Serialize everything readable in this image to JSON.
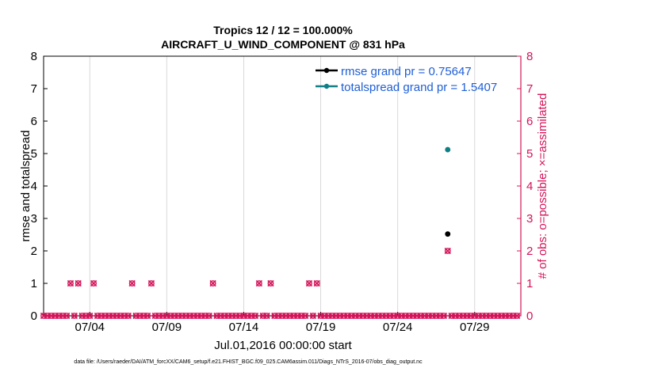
{
  "chart_data": {
    "type": "scatter",
    "title": "Tropics 12 / 12 = 100.000%",
    "subtitle": "AIRCRAFT_U_WIND_COMPONENT @ 831 hPa",
    "xlabel": "Jul.01,2016 00:00:00 start",
    "ylabel_left": "rmse and totalspread",
    "ylabel_right": "# of obs: o=possible; ×=assimilated",
    "xlim": [
      "2016-07-01",
      "2016-08-01"
    ],
    "ylim_left": [
      0,
      8
    ],
    "ylim_right": [
      0,
      8
    ],
    "x_tick_labels": [
      "07/04",
      "07/09",
      "07/14",
      "07/19",
      "07/24",
      "07/29"
    ],
    "y_tick_labels": [
      "0",
      "1",
      "2",
      "3",
      "4",
      "5",
      "6",
      "7",
      "8"
    ],
    "legend_position": "top-right",
    "grid": "vertical",
    "colors": {
      "rmse": "#000000",
      "totalspread": "#0f7f86",
      "obs": "#d4145a",
      "legend_text": "#1f5fd6"
    },
    "series": [
      {
        "name": "rmse grand pr = 0.75647",
        "marker": "dot",
        "color": "#000000",
        "points": [
          {
            "x": "2016-07-27 06:00",
            "y": 2.52
          }
        ]
      },
      {
        "name": "totalspread grand pr = 1.5407",
        "marker": "dot",
        "color": "#0f7f86",
        "points": [
          {
            "x": "2016-07-27 06:00",
            "y": 5.12
          }
        ]
      },
      {
        "name": "obs possible",
        "marker": "circle",
        "color": "#d4145a",
        "axis": "right",
        "points": [
          {
            "x": "2016-07-01 00:00",
            "y": 0
          },
          {
            "x": "2016-07-01 06:00",
            "y": 0
          },
          {
            "x": "2016-07-01 12:00",
            "y": 0
          },
          {
            "x": "2016-07-01 18:00",
            "y": 0
          },
          {
            "x": "2016-07-02 00:00",
            "y": 0
          },
          {
            "x": "2016-07-02 06:00",
            "y": 0
          },
          {
            "x": "2016-07-02 12:00",
            "y": 0
          },
          {
            "x": "2016-07-02 18:00",
            "y": 1
          },
          {
            "x": "2016-07-03 00:00",
            "y": 0
          },
          {
            "x": "2016-07-03 06:00",
            "y": 1
          },
          {
            "x": "2016-07-03 12:00",
            "y": 0
          },
          {
            "x": "2016-07-03 18:00",
            "y": 0
          },
          {
            "x": "2016-07-04 00:00",
            "y": 0
          },
          {
            "x": "2016-07-04 06:00",
            "y": 1
          },
          {
            "x": "2016-07-04 12:00",
            "y": 0
          },
          {
            "x": "2016-07-04 18:00",
            "y": 0
          },
          {
            "x": "2016-07-05 00:00",
            "y": 0
          },
          {
            "x": "2016-07-05 06:00",
            "y": 0
          },
          {
            "x": "2016-07-05 12:00",
            "y": 0
          },
          {
            "x": "2016-07-05 18:00",
            "y": 0
          },
          {
            "x": "2016-07-06 00:00",
            "y": 0
          },
          {
            "x": "2016-07-06 06:00",
            "y": 0
          },
          {
            "x": "2016-07-06 12:00",
            "y": 0
          },
          {
            "x": "2016-07-06 18:00",
            "y": 1
          },
          {
            "x": "2016-07-07 00:00",
            "y": 0
          },
          {
            "x": "2016-07-07 06:00",
            "y": 0
          },
          {
            "x": "2016-07-07 12:00",
            "y": 0
          },
          {
            "x": "2016-07-07 18:00",
            "y": 0
          },
          {
            "x": "2016-07-08 00:00",
            "y": 1
          },
          {
            "x": "2016-07-08 06:00",
            "y": 0
          },
          {
            "x": "2016-07-08 12:00",
            "y": 0
          },
          {
            "x": "2016-07-08 18:00",
            "y": 0
          },
          {
            "x": "2016-07-09 00:00",
            "y": 0
          },
          {
            "x": "2016-07-09 06:00",
            "y": 0
          },
          {
            "x": "2016-07-09 12:00",
            "y": 0
          },
          {
            "x": "2016-07-09 18:00",
            "y": 0
          },
          {
            "x": "2016-07-10 00:00",
            "y": 0
          },
          {
            "x": "2016-07-10 06:00",
            "y": 0
          },
          {
            "x": "2016-07-10 12:00",
            "y": 0
          },
          {
            "x": "2016-07-10 18:00",
            "y": 0
          },
          {
            "x": "2016-07-11 00:00",
            "y": 0
          },
          {
            "x": "2016-07-11 06:00",
            "y": 0
          },
          {
            "x": "2016-07-11 12:00",
            "y": 0
          },
          {
            "x": "2016-07-11 18:00",
            "y": 0
          },
          {
            "x": "2016-07-12 00:00",
            "y": 1
          },
          {
            "x": "2016-07-12 06:00",
            "y": 0
          },
          {
            "x": "2016-07-12 12:00",
            "y": 0
          },
          {
            "x": "2016-07-12 18:00",
            "y": 0
          },
          {
            "x": "2016-07-13 00:00",
            "y": 0
          },
          {
            "x": "2016-07-13 06:00",
            "y": 0
          },
          {
            "x": "2016-07-13 12:00",
            "y": 0
          },
          {
            "x": "2016-07-13 18:00",
            "y": 0
          },
          {
            "x": "2016-07-14 00:00",
            "y": 0
          },
          {
            "x": "2016-07-14 06:00",
            "y": 0
          },
          {
            "x": "2016-07-14 12:00",
            "y": 0
          },
          {
            "x": "2016-07-14 18:00",
            "y": 0
          },
          {
            "x": "2016-07-15 00:00",
            "y": 1
          },
          {
            "x": "2016-07-15 06:00",
            "y": 0
          },
          {
            "x": "2016-07-15 12:00",
            "y": 0
          },
          {
            "x": "2016-07-15 18:00",
            "y": 1
          },
          {
            "x": "2016-07-16 00:00",
            "y": 0
          },
          {
            "x": "2016-07-16 06:00",
            "y": 0
          },
          {
            "x": "2016-07-16 12:00",
            "y": 0
          },
          {
            "x": "2016-07-16 18:00",
            "y": 0
          },
          {
            "x": "2016-07-17 00:00",
            "y": 0
          },
          {
            "x": "2016-07-17 06:00",
            "y": 0
          },
          {
            "x": "2016-07-17 12:00",
            "y": 0
          },
          {
            "x": "2016-07-17 18:00",
            "y": 0
          },
          {
            "x": "2016-07-18 00:00",
            "y": 0
          },
          {
            "x": "2016-07-18 06:00",
            "y": 1
          },
          {
            "x": "2016-07-18 12:00",
            "y": 0
          },
          {
            "x": "2016-07-18 18:00",
            "y": 1
          },
          {
            "x": "2016-07-19 00:00",
            "y": 0
          },
          {
            "x": "2016-07-19 06:00",
            "y": 0
          },
          {
            "x": "2016-07-19 12:00",
            "y": 0
          },
          {
            "x": "2016-07-19 18:00",
            "y": 0
          },
          {
            "x": "2016-07-20 00:00",
            "y": 0
          },
          {
            "x": "2016-07-20 06:00",
            "y": 0
          },
          {
            "x": "2016-07-20 12:00",
            "y": 0
          },
          {
            "x": "2016-07-20 18:00",
            "y": 0
          },
          {
            "x": "2016-07-21 00:00",
            "y": 0
          },
          {
            "x": "2016-07-21 06:00",
            "y": 0
          },
          {
            "x": "2016-07-21 12:00",
            "y": 0
          },
          {
            "x": "2016-07-21 18:00",
            "y": 0
          },
          {
            "x": "2016-07-22 00:00",
            "y": 0
          },
          {
            "x": "2016-07-22 06:00",
            "y": 0
          },
          {
            "x": "2016-07-22 12:00",
            "y": 0
          },
          {
            "x": "2016-07-22 18:00",
            "y": 0
          },
          {
            "x": "2016-07-23 00:00",
            "y": 0
          },
          {
            "x": "2016-07-23 06:00",
            "y": 0
          },
          {
            "x": "2016-07-23 12:00",
            "y": 0
          },
          {
            "x": "2016-07-23 18:00",
            "y": 0
          },
          {
            "x": "2016-07-24 00:00",
            "y": 0
          },
          {
            "x": "2016-07-24 06:00",
            "y": 0
          },
          {
            "x": "2016-07-24 12:00",
            "y": 0
          },
          {
            "x": "2016-07-24 18:00",
            "y": 0
          },
          {
            "x": "2016-07-25 00:00",
            "y": 0
          },
          {
            "x": "2016-07-25 06:00",
            "y": 0
          },
          {
            "x": "2016-07-25 12:00",
            "y": 0
          },
          {
            "x": "2016-07-25 18:00",
            "y": 0
          },
          {
            "x": "2016-07-26 00:00",
            "y": 0
          },
          {
            "x": "2016-07-26 06:00",
            "y": 0
          },
          {
            "x": "2016-07-26 12:00",
            "y": 0
          },
          {
            "x": "2016-07-26 18:00",
            "y": 0
          },
          {
            "x": "2016-07-27 00:00",
            "y": 0
          },
          {
            "x": "2016-07-27 06:00",
            "y": 2
          },
          {
            "x": "2016-07-27 12:00",
            "y": 0
          },
          {
            "x": "2016-07-27 18:00",
            "y": 0
          },
          {
            "x": "2016-07-28 00:00",
            "y": 0
          },
          {
            "x": "2016-07-28 06:00",
            "y": 0
          },
          {
            "x": "2016-07-28 12:00",
            "y": 0
          },
          {
            "x": "2016-07-28 18:00",
            "y": 0
          },
          {
            "x": "2016-07-29 00:00",
            "y": 0
          },
          {
            "x": "2016-07-29 06:00",
            "y": 0
          },
          {
            "x": "2016-07-29 12:00",
            "y": 0
          },
          {
            "x": "2016-07-29 18:00",
            "y": 0
          },
          {
            "x": "2016-07-30 00:00",
            "y": 0
          },
          {
            "x": "2016-07-30 06:00",
            "y": 0
          },
          {
            "x": "2016-07-30 12:00",
            "y": 0
          },
          {
            "x": "2016-07-30 18:00",
            "y": 0
          },
          {
            "x": "2016-07-31 00:00",
            "y": 0
          },
          {
            "x": "2016-07-31 06:00",
            "y": 0
          },
          {
            "x": "2016-07-31 12:00",
            "y": 0
          },
          {
            "x": "2016-07-31 18:00",
            "y": 0
          }
        ]
      }
    ]
  },
  "footer": {
    "data_file": "data file: /Users/raeder/DAI/ATM_forcXX/CAM6_setup/f.e21.FHIST_BGC.f09_025.CAM6assim.011/Diags_NTrS_2016-07/obs_diag_output.nc"
  }
}
